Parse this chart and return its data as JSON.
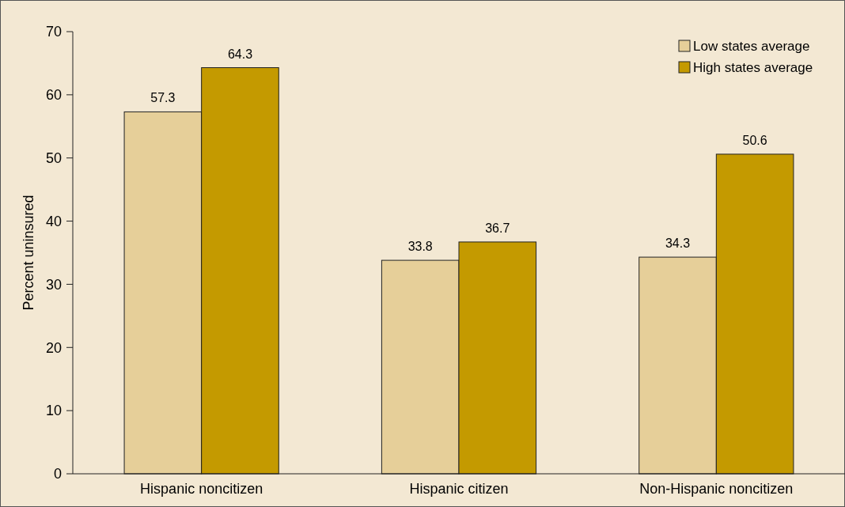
{
  "chart_data": {
    "type": "bar",
    "ylabel": "Percent uninsured",
    "categories": [
      "Hispanic noncitizen",
      "Hispanic citizen",
      "Non-Hispanic noncitizen"
    ],
    "series": [
      {
        "name": "Low states average",
        "color": "#e6cf99",
        "values": [
          57.3,
          33.8,
          34.3
        ]
      },
      {
        "name": "High states average",
        "color": "#c49a00",
        "values": [
          64.3,
          36.7,
          50.6
        ]
      }
    ],
    "ylim": [
      0,
      70
    ],
    "yticks": [
      0,
      10,
      20,
      30,
      40,
      50,
      60,
      70
    ],
    "grid": false,
    "legend": "top right",
    "data_labels": true
  }
}
